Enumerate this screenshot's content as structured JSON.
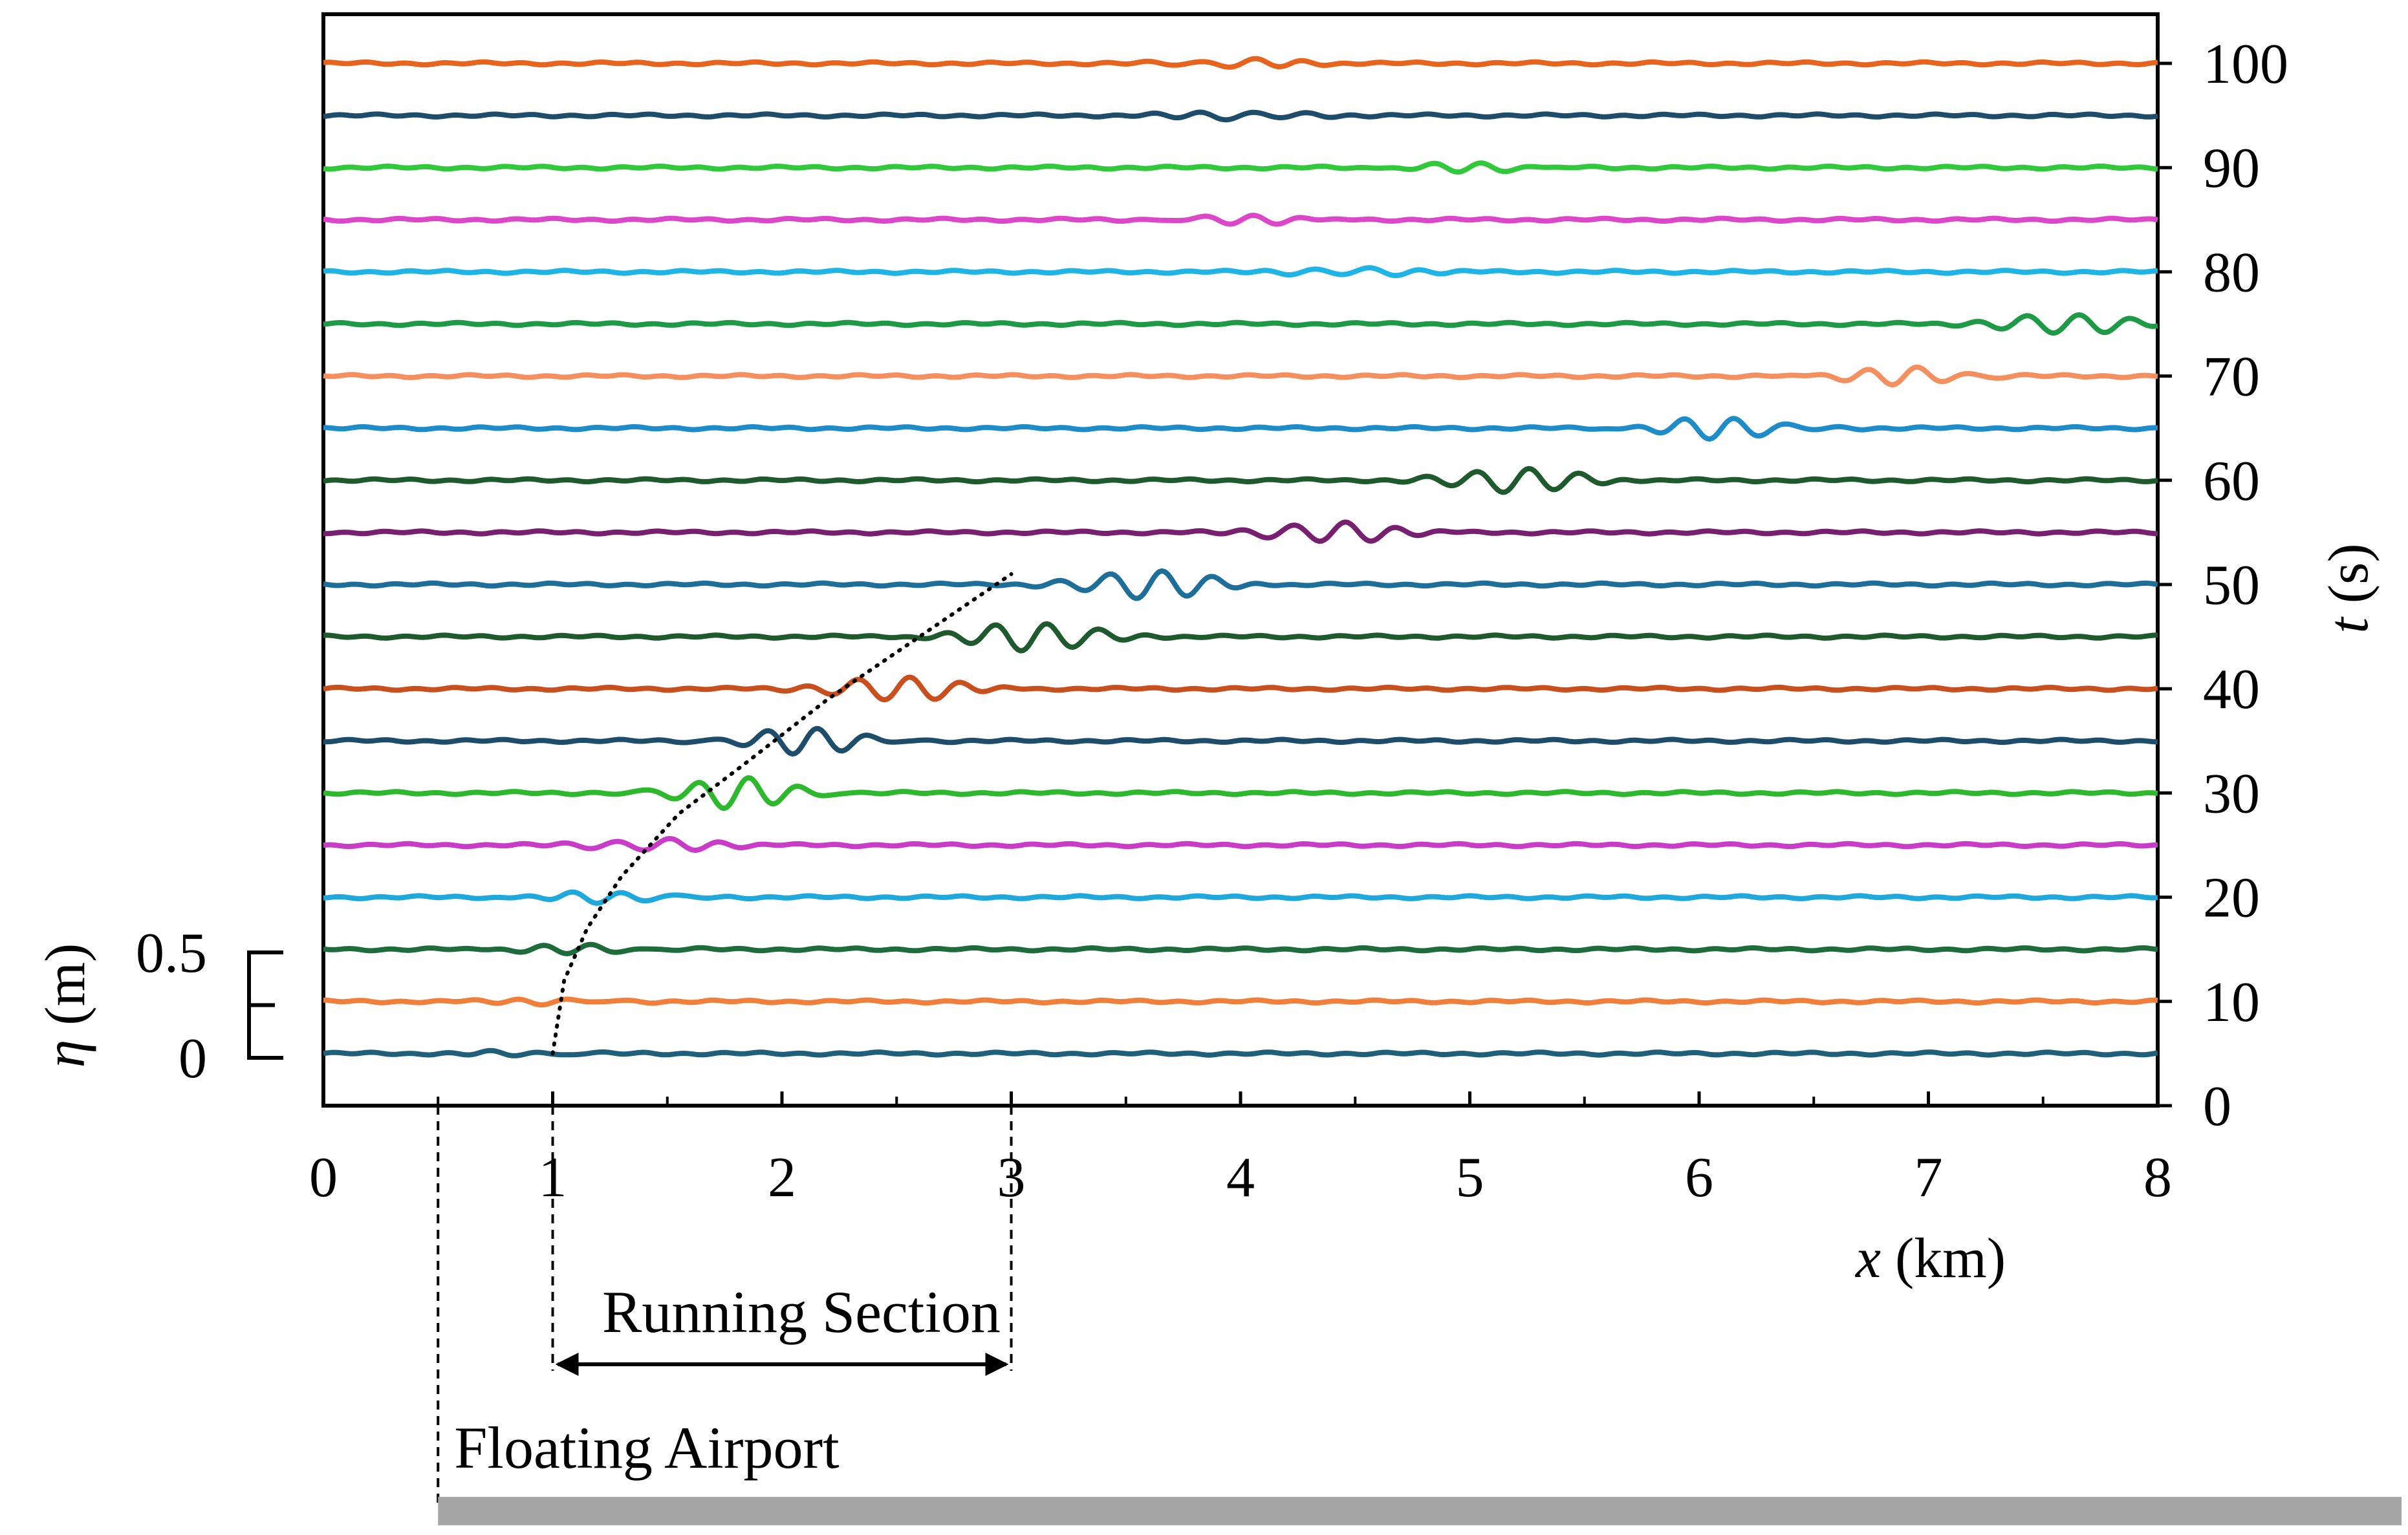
{
  "chart_data": {
    "type": "line",
    "title": "",
    "xlabel_var": "x",
    "xlabel_unit": " (km)",
    "ylabel_var": "t",
    "ylabel_unit": " (s)",
    "xlim": [
      0,
      8
    ],
    "ylim": [
      0,
      100
    ],
    "x_ticks": [
      "0",
      "1",
      "2",
      "3",
      "4",
      "5",
      "6",
      "7",
      "8"
    ],
    "y_ticks": [
      "0",
      "10",
      "20",
      "30",
      "40",
      "50",
      "60",
      "70",
      "80",
      "90",
      "100"
    ],
    "amplitude_scale": {
      "var": "η",
      "unit": " (m)",
      "labels": [
        "0.5",
        "0"
      ],
      "values": [
        0.5,
        0
      ]
    },
    "series": [
      {
        "t": 5,
        "color": "#1f5f7a",
        "pulse_x": 0.9,
        "amp": 0.01
      },
      {
        "t": 10,
        "color": "#f07f3c",
        "pulse_x": 1.02,
        "amp": 0.012
      },
      {
        "t": 15,
        "color": "#1e6b3c",
        "pulse_x": 1.12,
        "amp": 0.02
      },
      {
        "t": 20,
        "color": "#1fa8dc",
        "pulse_x": 1.25,
        "amp": 0.025
      },
      {
        "t": 25,
        "color": "#c83cc8",
        "pulse_x": 1.45,
        "amp": 0.03
      },
      {
        "t": 30,
        "color": "#2db82d",
        "pulse_x": 1.8,
        "amp": 0.07
      },
      {
        "t": 35,
        "color": "#1e4d6b",
        "pulse_x": 2.1,
        "amp": 0.06
      },
      {
        "t": 40,
        "color": "#c8501e",
        "pulse_x": 2.5,
        "amp": 0.06
      },
      {
        "t": 45,
        "color": "#1e5a2d",
        "pulse_x": 3.1,
        "amp": 0.07
      },
      {
        "t": 50,
        "color": "#1e6e9a",
        "pulse_x": 3.6,
        "amp": 0.07
      },
      {
        "t": 55,
        "color": "#782070",
        "pulse_x": 4.4,
        "amp": 0.05
      },
      {
        "t": 60,
        "color": "#1e5a2d",
        "pulse_x": 5.2,
        "amp": 0.06
      },
      {
        "t": 65,
        "color": "#1e8cc8",
        "pulse_x": 6.1,
        "amp": 0.05
      },
      {
        "t": 70,
        "color": "#f49060",
        "pulse_x": 6.9,
        "amp": 0.04
      },
      {
        "t": 75,
        "color": "#1e9a46",
        "pulse_x": 7.6,
        "amp": 0.05
      },
      {
        "t": 80,
        "color": "#1eb4e6",
        "pulse_x": 4.5,
        "amp": 0.02
      },
      {
        "t": 85,
        "color": "#dc46c8",
        "pulse_x": 4.0,
        "amp": 0.02
      },
      {
        "t": 90,
        "color": "#32c83c",
        "pulse_x": 5.0,
        "amp": 0.02
      },
      {
        "t": 95,
        "color": "#1e4d6b",
        "pulse_x": 4.0,
        "amp": 0.02
      },
      {
        "t": 100,
        "color": "#e6641e",
        "pulse_x": 4.0,
        "amp": 0.02
      }
    ],
    "dotted_curve": [
      {
        "x": 1.0,
        "t": 5
      },
      {
        "x": 1.05,
        "t": 12
      },
      {
        "x": 1.15,
        "t": 17
      },
      {
        "x": 1.3,
        "t": 22
      },
      {
        "x": 1.55,
        "t": 28
      },
      {
        "x": 1.85,
        "t": 33
      },
      {
        "x": 2.2,
        "t": 39
      },
      {
        "x": 2.6,
        "t": 45
      },
      {
        "x": 3.0,
        "t": 51
      }
    ],
    "annotations": {
      "running_section": {
        "label": "Running Section",
        "x_start": 1,
        "x_end": 3
      },
      "floating_airport": {
        "label": "Floating Airport",
        "x_start": 0.5
      }
    },
    "colors": {
      "axis": "#000000",
      "airport_bar": "#a6a6a6"
    }
  }
}
